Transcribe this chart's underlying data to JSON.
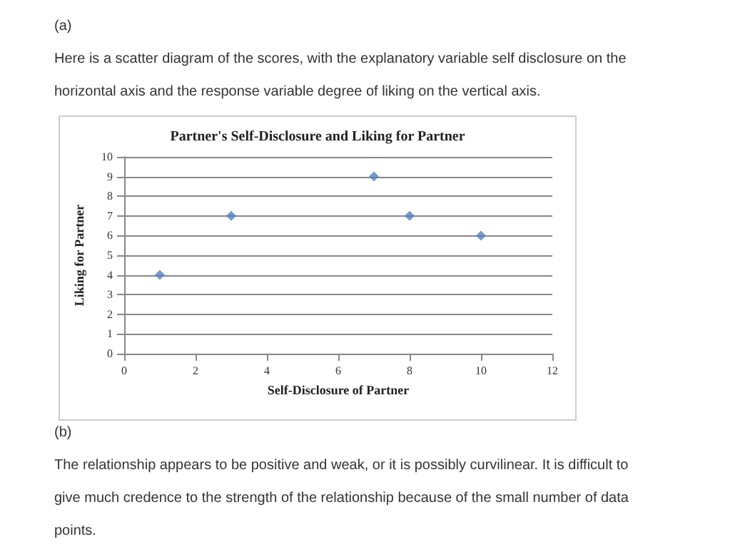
{
  "chart_data": {
    "type": "scatter",
    "title": "Partner's Self-Disclosure and Liking for Partner",
    "xlabel": "Self-Disclosure of Partner",
    "ylabel": "Liking for Partner",
    "annotations": [
      "(a)",
      "Here is a scatter diagram of the scores, with the explanatory variable self disclosure on the horizontal axis and the response variable degree of liking on the vertical axis.",
      "(b)",
      "The relationship appears to be positive and weak, or it is possibly curvilinear. It is difficult to give much credence to the strength of the relationship because of the small number of data points."
    ],
    "x": [
      1,
      3,
      7,
      8,
      10
    ],
    "series": [
      {
        "color": "#4f81bd",
        "values": [
          4,
          7,
          9,
          7,
          6
        ]
      }
    ],
    "xlim": [
      0,
      12
    ],
    "xticks": [
      0,
      2,
      4,
      6,
      8,
      10,
      12
    ],
    "ylim": [
      0,
      10
    ],
    "yticks": [
      0,
      1,
      2,
      3,
      4,
      5,
      6,
      7,
      8,
      9,
      10
    ],
    "grid": "y",
    "marker": "diamond"
  }
}
